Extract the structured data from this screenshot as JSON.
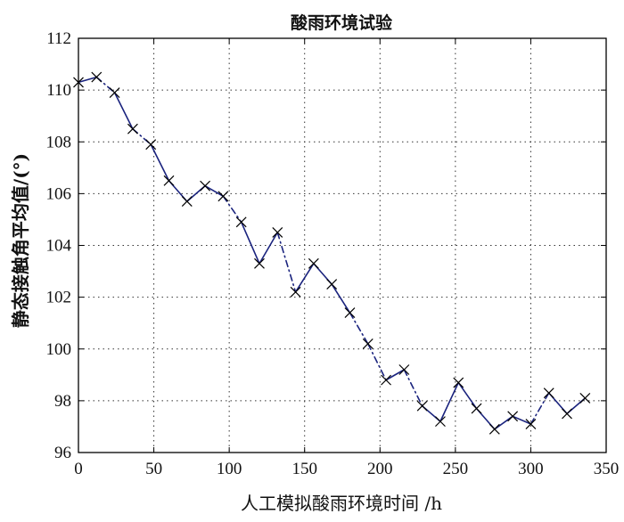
{
  "chart_data": {
    "type": "line",
    "title": "酸雨环境试验",
    "xlabel": "人工模拟酸雨环境时间 /h",
    "ylabel": "静态接触角平均值/(°)",
    "xlim": [
      0,
      350
    ],
    "ylim": [
      96,
      112
    ],
    "xticks": [
      0,
      50,
      100,
      150,
      200,
      250,
      300,
      350
    ],
    "yticks": [
      96,
      98,
      100,
      102,
      104,
      106,
      108,
      110,
      112
    ],
    "grid": true,
    "legend": "none",
    "series": [
      {
        "line_color": "#1a237e",
        "marker": "x",
        "x": [
          0,
          12,
          24,
          36,
          48,
          60,
          72,
          84,
          96,
          108,
          120,
          132,
          144,
          156,
          168,
          180,
          192,
          204,
          216,
          228,
          240,
          252,
          264,
          276,
          288,
          300,
          312,
          324,
          336
        ],
        "y": [
          110.3,
          110.5,
          109.9,
          108.5,
          107.9,
          106.5,
          105.7,
          106.3,
          105.9,
          104.9,
          103.3,
          104.5,
          102.2,
          103.3,
          102.5,
          101.4,
          100.2,
          98.8,
          99.2,
          97.8,
          97.2,
          98.7,
          97.7,
          96.9,
          97.4,
          97.1,
          98.3,
          97.5,
          98.1
        ],
        "segment_styles": [
          "solid",
          "dashdot",
          "solid",
          "dashdot",
          "solid",
          "solid",
          "solid",
          "solid",
          "dashdot",
          "solid",
          "solid",
          "dashdot",
          "solid",
          "solid",
          "solid",
          "dashdot",
          "dashdot",
          "solid",
          "dashdot",
          "solid",
          "solid",
          "solid",
          "solid",
          "solid",
          "solid",
          "dashdot",
          "solid",
          "solid"
        ]
      }
    ]
  }
}
